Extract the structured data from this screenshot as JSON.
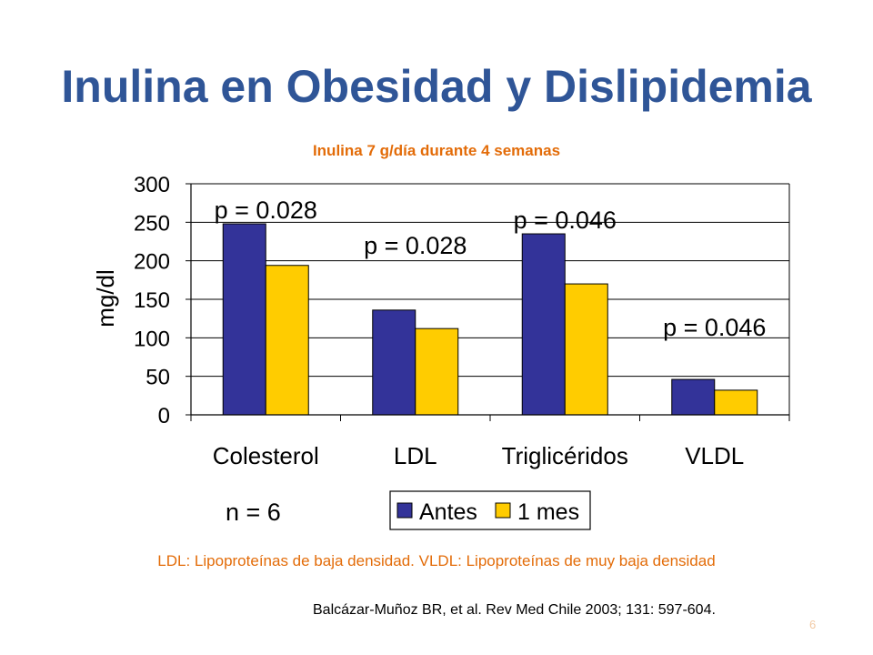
{
  "slide": {
    "title": "Inulina en Obesidad y Dislipidemia",
    "footnote": "LDL: Lipoproteínas de baja densidad. VLDL: Lipoproteínas de muy baja densidad",
    "citation": "Balcázar-Muñoz BR, et al. Rev Med Chile 2003; 131: 597-604.",
    "page_number": "6"
  },
  "chart_data": {
    "type": "bar",
    "title": "Inulina 7 g/día durante 4 semanas",
    "categories": [
      "Colesterol",
      "LDL",
      "Triglicéridos",
      "VLDL"
    ],
    "series": [
      {
        "name": "Antes",
        "color": "#333399",
        "values": [
          248,
          136,
          235,
          46
        ]
      },
      {
        "name": "1 mes",
        "color": "#ffcc00",
        "values": [
          194,
          112,
          170,
          32
        ]
      }
    ],
    "ylabel": "mg/dl",
    "xlabel": "",
    "ylim": [
      0,
      300
    ],
    "yticks": [
      "0",
      "50",
      "100",
      "150",
      "200",
      "250",
      "300"
    ],
    "grid": true,
    "legend_position": "bottom",
    "annotations": [
      {
        "text": "p = 0.028",
        "category": "Colesterol"
      },
      {
        "text": "p = 0.028",
        "category": "LDL"
      },
      {
        "text": "p = 0.046",
        "category": "Triglicéridos"
      },
      {
        "text": "p = 0.046",
        "category": "VLDL"
      }
    ],
    "n_label": "n = 6"
  }
}
